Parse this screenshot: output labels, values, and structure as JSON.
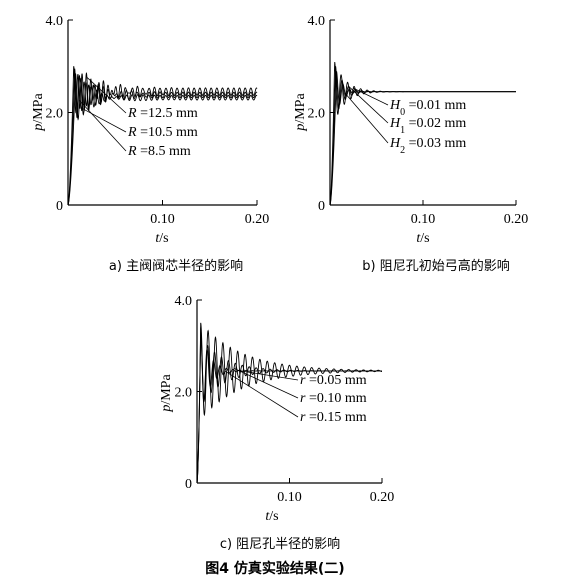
{
  "figure_caption": "图4   仿真实验结果(二)",
  "chart_data": [
    {
      "type": "line",
      "id": "a",
      "caption": "a) 主阀阀芯半径的影响",
      "xlabel_var": "t",
      "xlabel_unit": "/s",
      "ylabel_var": "p",
      "ylabel_unit": "/MPa",
      "xlim": [
        0,
        0.2
      ],
      "ylim": [
        0,
        4.0
      ],
      "xticks": [
        {
          "v": 0.1,
          "label": "0.10"
        },
        {
          "v": 0.2,
          "label": "0.20"
        }
      ],
      "yticks": [
        {
          "v": 0,
          "label": "0"
        },
        {
          "v": 2.0,
          "label": "2.0"
        },
        {
          "v": 4.0,
          "label": "4.0"
        }
      ],
      "series": [
        {
          "var": "R",
          "eq": "=12.5 mm",
          "steady": 2.45,
          "peak": 3.0,
          "t_peak": 0.006,
          "decay": 0.025,
          "period": 0.0045,
          "ripple": 0.08
        },
        {
          "var": "R",
          "eq": "=10.5 mm",
          "steady": 2.38,
          "peak": 2.9,
          "t_peak": 0.007,
          "decay": 0.022,
          "period": 0.005,
          "ripple": 0.06
        },
        {
          "var": "R",
          "eq": "=8.5 mm",
          "steady": 2.32,
          "peak": 2.8,
          "t_peak": 0.008,
          "decay": 0.02,
          "period": 0.0055,
          "ripple": 0.05
        }
      ]
    },
    {
      "type": "line",
      "id": "b",
      "caption": "b) 阻尼孔初始弓高的影响",
      "xlabel_var": "t",
      "xlabel_unit": "/s",
      "ylabel_var": "p",
      "ylabel_unit": "/MPa",
      "xlim": [
        0,
        0.2
      ],
      "ylim": [
        0,
        4.0
      ],
      "xticks": [
        {
          "v": 0.1,
          "label": "0.10"
        },
        {
          "v": 0.2,
          "label": "0.20"
        }
      ],
      "yticks": [
        {
          "v": 0,
          "label": "0"
        },
        {
          "v": 2.0,
          "label": "2.0"
        },
        {
          "v": 4.0,
          "label": "4.0"
        }
      ],
      "series": [
        {
          "var": "H",
          "sub": "0",
          "eq": "=0.01 mm",
          "steady": 2.45,
          "peak": 3.1,
          "t_peak": 0.005,
          "decay": 0.012,
          "period": 0.007,
          "ripple": 0.0
        },
        {
          "var": "H",
          "sub": "1",
          "eq": "=0.02 mm",
          "steady": 2.45,
          "peak": 3.0,
          "t_peak": 0.006,
          "decay": 0.009,
          "period": 0.007,
          "ripple": 0.0
        },
        {
          "var": "H",
          "sub": "2",
          "eq": "=0.03 mm",
          "steady": 2.45,
          "peak": 2.9,
          "t_peak": 0.007,
          "decay": 0.007,
          "period": 0.007,
          "ripple": 0.0
        }
      ]
    },
    {
      "type": "line",
      "id": "c",
      "caption": "c) 阻尼孔半径的影响",
      "xlabel_var": "t",
      "xlabel_unit": "/s",
      "ylabel_var": "p",
      "ylabel_unit": "/MPa",
      "xlim": [
        0,
        0.2
      ],
      "ylim": [
        0,
        4.0
      ],
      "xticks": [
        {
          "v": 0.1,
          "label": "0.10"
        },
        {
          "v": 0.2,
          "label": "0.20"
        }
      ],
      "yticks": [
        {
          "v": 0,
          "label": "0"
        },
        {
          "v": 2.0,
          "label": "2.0"
        },
        {
          "v": 4.0,
          "label": "4.0"
        }
      ],
      "series": [
        {
          "var": "r",
          "eq": "=0.05 mm",
          "steady": 2.45,
          "peak": 3.4,
          "t_peak": 0.004,
          "decay": 0.01,
          "period": 0.007,
          "ripple": 0.0
        },
        {
          "var": "r",
          "eq": "=0.10 mm",
          "steady": 2.45,
          "peak": 3.2,
          "t_peak": 0.004,
          "decay": 0.025,
          "period": 0.0075,
          "ripple": 0.0
        },
        {
          "var": "r",
          "eq": "=0.15 mm",
          "steady": 2.45,
          "peak": 3.5,
          "t_peak": 0.004,
          "decay": 0.045,
          "period": 0.008,
          "ripple": 0.0
        }
      ]
    }
  ]
}
